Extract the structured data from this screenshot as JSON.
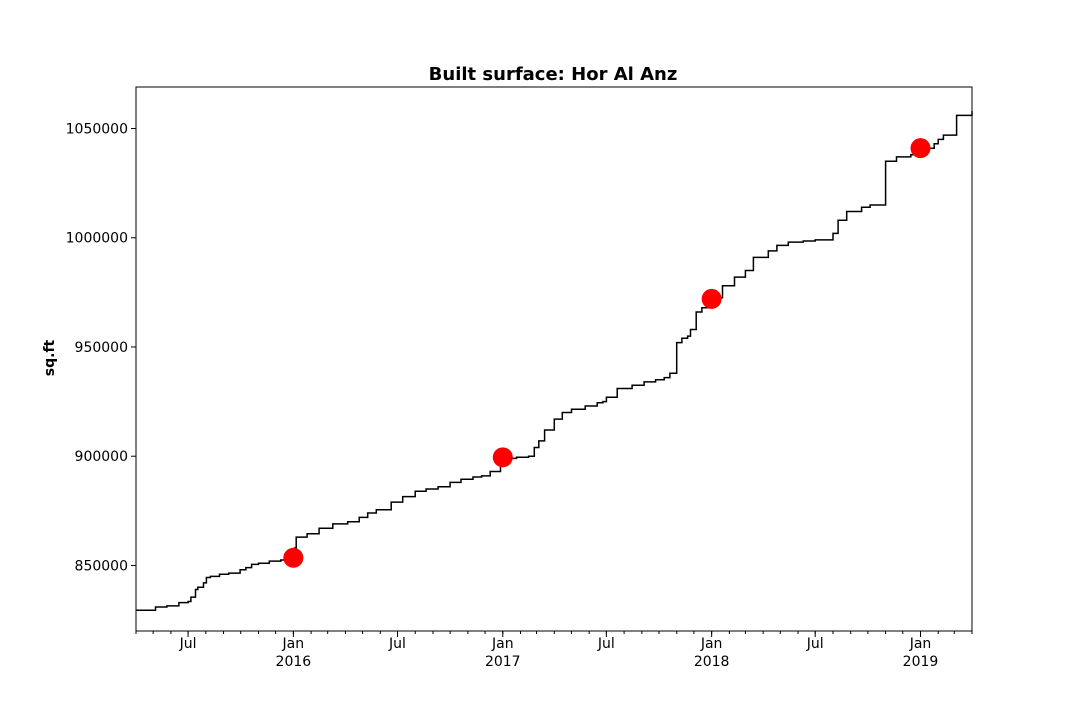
{
  "chart_data": {
    "type": "line",
    "title": "Built surface: Hor Al Anz",
    "xlabel": "",
    "ylabel": "sq.ft",
    "xlim": [
      "2015-04-01",
      "2019-04-01"
    ],
    "ylim": [
      820000,
      1069000
    ],
    "yticks": [
      850000,
      900000,
      950000,
      1000000,
      1050000
    ],
    "ytick_labels": [
      "850000",
      "900000",
      "950000",
      "1000000",
      "1050000"
    ],
    "xtick_labels": [
      {
        "date": "2015-07-01",
        "label": "Jul",
        "year": ""
      },
      {
        "date": "2016-01-01",
        "label": "Jan",
        "year": "2016"
      },
      {
        "date": "2016-07-01",
        "label": "Jul",
        "year": ""
      },
      {
        "date": "2017-01-01",
        "label": "Jan",
        "year": "2017"
      },
      {
        "date": "2017-07-01",
        "label": "Jul",
        "year": ""
      },
      {
        "date": "2018-01-01",
        "label": "Jan",
        "year": "2018"
      },
      {
        "date": "2018-07-01",
        "label": "Jul",
        "year": ""
      },
      {
        "date": "2019-01-01",
        "label": "Jan",
        "year": "2019"
      }
    ],
    "minor_ticks": "monthly",
    "grid": false,
    "line_color": "#000000",
    "marker_color": "#ff0000",
    "series": [
      {
        "x": [
          "2015-04-01",
          "2015-04-25",
          "2015-05-05",
          "2015-05-25",
          "2015-06-15",
          "2015-07-01",
          "2015-07-06",
          "2015-07-14",
          "2015-07-18",
          "2015-07-28",
          "2015-08-02",
          "2015-08-09",
          "2015-08-25",
          "2015-09-10",
          "2015-09-30",
          "2015-10-10",
          "2015-10-20",
          "2015-11-01",
          "2015-11-20",
          "2015-12-10",
          "2015-12-31",
          "2016-01-03",
          "2016-01-06",
          "2016-01-25",
          "2016-02-15",
          "2016-03-10",
          "2016-04-05",
          "2016-04-25",
          "2016-05-10",
          "2016-05-25",
          "2016-06-20",
          "2016-07-10",
          "2016-08-01",
          "2016-08-20",
          "2016-09-10",
          "2016-10-01",
          "2016-10-20",
          "2016-11-10",
          "2016-11-25",
          "2016-12-10",
          "2016-12-28",
          "2017-01-01",
          "2017-01-15",
          "2017-01-25",
          "2017-02-15",
          "2017-02-25",
          "2017-03-05",
          "2017-03-15",
          "2017-04-01",
          "2017-04-15",
          "2017-05-01",
          "2017-05-25",
          "2017-06-15",
          "2017-06-25",
          "2017-07-01",
          "2017-07-20",
          "2017-08-15",
          "2017-09-05",
          "2017-09-25",
          "2017-10-10",
          "2017-10-20",
          "2017-11-01",
          "2017-11-10",
          "2017-11-20",
          "2017-11-25",
          "2017-12-05",
          "2017-12-15",
          "2017-12-28",
          "2018-01-01",
          "2018-01-20",
          "2018-02-10",
          "2018-03-01",
          "2018-03-15",
          "2018-04-10",
          "2018-04-25",
          "2018-05-15",
          "2018-06-10",
          "2018-07-01",
          "2018-08-01",
          "2018-08-10",
          "2018-08-25",
          "2018-09-20",
          "2018-10-05",
          "2018-10-15",
          "2018-11-01",
          "2018-11-20",
          "2018-12-15",
          "2018-12-31",
          "2019-01-15",
          "2019-01-25",
          "2019-02-01",
          "2019-02-10",
          "2019-03-05",
          "2019-04-01"
        ],
        "y": [
          829500,
          829500,
          831000,
          831500,
          833000,
          833500,
          835500,
          839000,
          840000,
          842000,
          844500,
          845000,
          846000,
          846500,
          848000,
          849000,
          850500,
          851000,
          852000,
          852500,
          852500,
          858000,
          863000,
          864500,
          867000,
          869000,
          870000,
          872000,
          874000,
          875500,
          879000,
          881500,
          884000,
          885000,
          886000,
          888000,
          889500,
          890500,
          891000,
          893000,
          896000,
          898500,
          899000,
          899500,
          900000,
          904000,
          907000,
          912000,
          917000,
          920000,
          921500,
          923000,
          924500,
          925000,
          927000,
          931000,
          932500,
          934000,
          935000,
          936000,
          938000,
          952000,
          954000,
          955000,
          958000,
          966000,
          968000,
          972000,
          972500,
          978000,
          982000,
          985000,
          991000,
          994000,
          996500,
          998000,
          998500,
          999000,
          1002000,
          1008000,
          1012000,
          1014000,
          1015000,
          1015000,
          1035000,
          1037000,
          1038000,
          1039000,
          1041000,
          1043000,
          1045000,
          1047000,
          1056000,
          1058000
        ]
      }
    ],
    "markers": [
      {
        "x": "2016-01-01",
        "y": 853500
      },
      {
        "x": "2017-01-01",
        "y": 899500
      },
      {
        "x": "2018-01-01",
        "y": 972000
      },
      {
        "x": "2019-01-01",
        "y": 1041000
      }
    ]
  }
}
